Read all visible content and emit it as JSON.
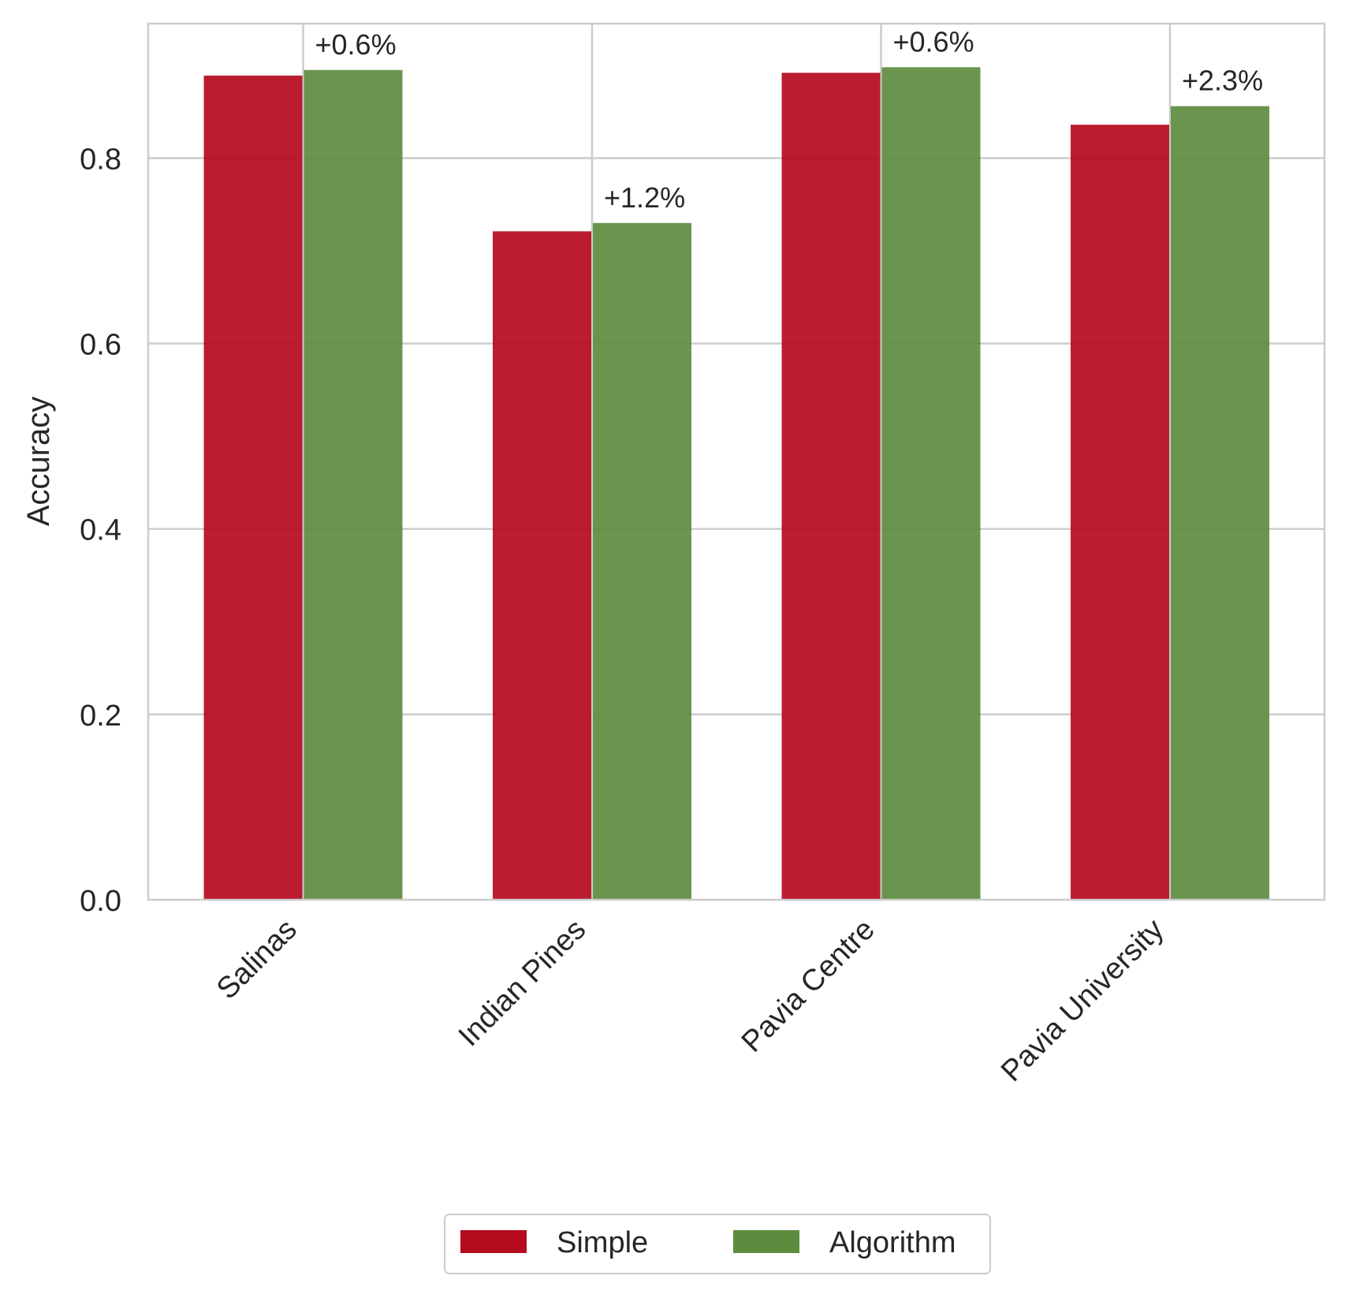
{
  "chart_data": {
    "type": "bar",
    "categories": [
      "Salinas",
      "Indian Pines",
      "Pavia Centre",
      "Pavia University"
    ],
    "series": [
      {
        "name": "Simple",
        "values": [
          0.889,
          0.721,
          0.892,
          0.836
        ],
        "color": "#b40a1e"
      },
      {
        "name": "Algorithm",
        "values": [
          0.895,
          0.73,
          0.898,
          0.856
        ],
        "color": "#5e8c3f"
      }
    ],
    "annotations": [
      "+0.6%",
      "+1.2%",
      "+0.6%",
      "+2.3%"
    ],
    "title": "",
    "xlabel": "",
    "ylabel": "Accuracy",
    "ylim": [
      0,
      0.945
    ],
    "yticks": [
      0.0,
      0.2,
      0.4,
      0.6,
      0.8
    ],
    "ytick_labels": [
      "0.0",
      "0.2",
      "0.4",
      "0.6",
      "0.8"
    ],
    "grid": true,
    "legend_position": "bottom-center"
  }
}
